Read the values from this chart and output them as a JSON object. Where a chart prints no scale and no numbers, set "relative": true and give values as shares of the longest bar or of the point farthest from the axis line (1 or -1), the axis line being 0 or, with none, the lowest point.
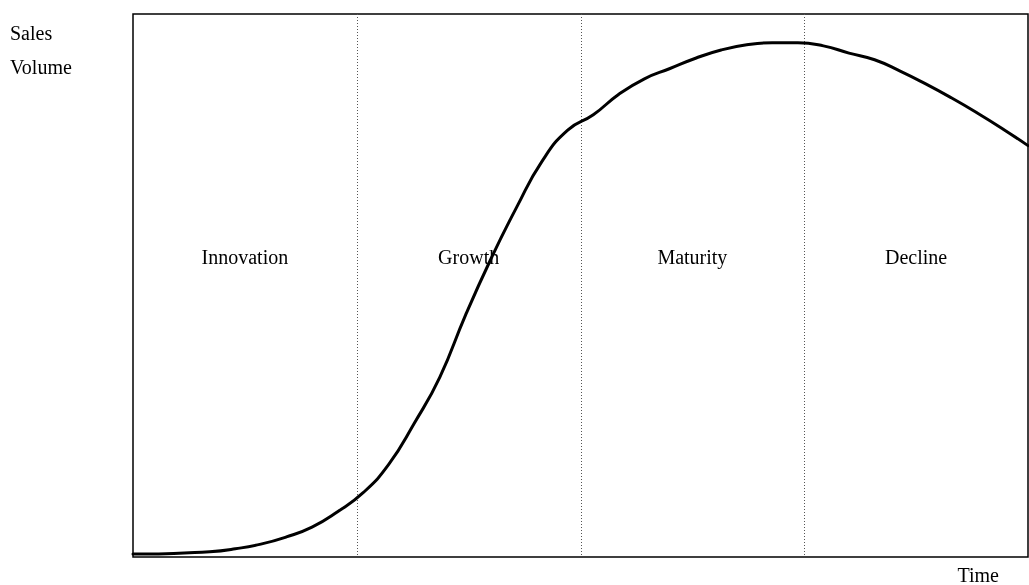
{
  "chart_data": {
    "type": "line",
    "relative": true,
    "ylabel": "Sales Volume",
    "xlabel": "Time",
    "color": "#000000",
    "marker": "none",
    "line_style": "solid",
    "categories": [
      null,
      null,
      null,
      null,
      null,
      null,
      null,
      null,
      null,
      null,
      null,
      null,
      null,
      null,
      null,
      null,
      null,
      null,
      null,
      null,
      null,
      null,
      null,
      null,
      null,
      null,
      null,
      null,
      null,
      null,
      null,
      null,
      null,
      null,
      null,
      null
    ],
    "values": [
      0.006,
      0.006,
      0.008,
      0.01,
      0.016,
      0.025,
      0.039,
      0.058,
      0.088,
      0.125,
      0.18,
      0.26,
      0.35,
      0.47,
      0.58,
      0.68,
      0.77,
      0.83,
      0.86,
      0.9,
      0.93,
      0.95,
      0.97,
      0.986,
      0.996,
      1,
      1,
      0.994,
      0.98,
      0.967,
      0.945,
      0.92,
      0.893,
      0.864,
      0.833,
      0.8
    ],
    "annotations": [
      "Innovation",
      "Growth",
      "Maturity",
      "Decline"
    ]
  }
}
